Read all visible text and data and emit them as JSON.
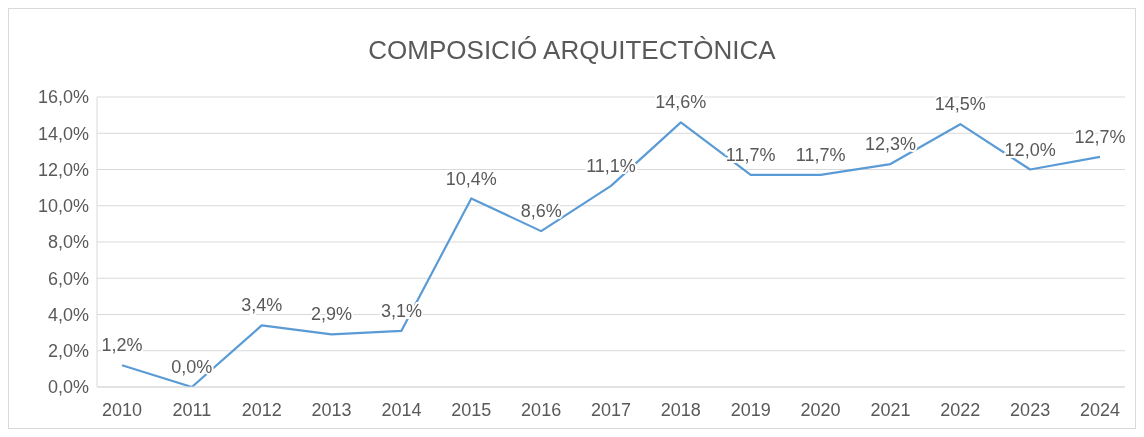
{
  "chart_data": {
    "type": "line",
    "title": "COMPOSICIÓ ARQUITECTÒNICA",
    "categories": [
      "2010",
      "2011",
      "2012",
      "2013",
      "2014",
      "2015",
      "2016",
      "2017",
      "2018",
      "2019",
      "2020",
      "2021",
      "2022",
      "2023",
      "2024"
    ],
    "series": [
      {
        "color": "#5b9bd5",
        "values": [
          1.2,
          0.0,
          3.4,
          2.9,
          3.1,
          10.4,
          8.6,
          11.1,
          14.6,
          11.7,
          11.7,
          12.3,
          14.5,
          12.0,
          12.7
        ],
        "value_labels": [
          "1,2%",
          "0,0%",
          "3,4%",
          "2,9%",
          "3,1%",
          "10,4%",
          "8,6%",
          "11,1%",
          "14,6%",
          "11,7%",
          "11,7%",
          "12,3%",
          "14,5%",
          "12,0%",
          "12,7%"
        ]
      }
    ],
    "ylim": [
      0,
      16
    ],
    "yticks": [
      {
        "value": 0,
        "label": "0,0%"
      },
      {
        "value": 2,
        "label": "2,0%"
      },
      {
        "value": 4,
        "label": "4,0%"
      },
      {
        "value": 6,
        "label": "6,0%"
      },
      {
        "value": 8,
        "label": "8,0%"
      },
      {
        "value": 10,
        "label": "10,0%"
      },
      {
        "value": 12,
        "label": "12,0%"
      },
      {
        "value": 14,
        "label": "14,0%"
      },
      {
        "value": 16,
        "label": "16,0%"
      }
    ],
    "grid": "y",
    "marker": "none",
    "line_style": "solid"
  }
}
